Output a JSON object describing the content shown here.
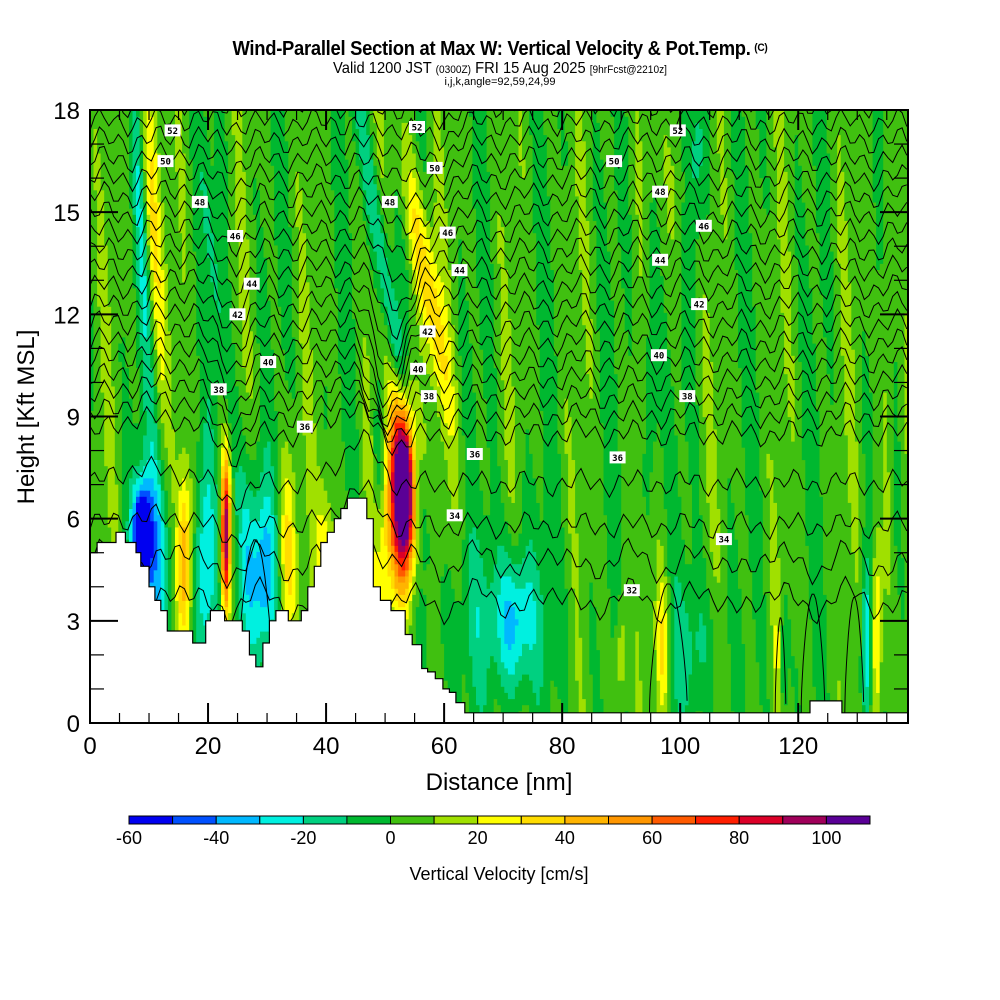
{
  "header": {
    "title": "Wind-Parallel Section at Max W: Vertical Velocity & Pot.Temp.",
    "title_mark": "(C)",
    "valid_prefix": "Valid 1200 JST",
    "valid_utc": "(0300Z)",
    "valid_date": "FRI 15 Aug 2025",
    "forecast": "[9hrFcst@2210z]",
    "indices": "i,j,k,angle=92,59,24,99"
  },
  "chart_data": {
    "type": "heatmap",
    "title": "Wind-Parallel Section at Max W: Vertical Velocity & Pot.Temp.",
    "xlabel": "Distance [nm]",
    "ylabel": "Height [Kft MSL]",
    "xlim": [
      0,
      138.6
    ],
    "ylim": [
      0,
      18
    ],
    "x_ticks": [
      "0",
      "20",
      "40",
      "60",
      "80",
      "100",
      "120"
    ],
    "x_tick_values": [
      0,
      20,
      40,
      60,
      80,
      100,
      120
    ],
    "y_ticks": [
      "0",
      "3",
      "6",
      "9",
      "12",
      "15",
      "18"
    ],
    "y_tick_values": [
      0,
      3,
      6,
      9,
      12,
      15,
      18
    ],
    "colorbar": {
      "title": "Vertical Velocity [cm/s]",
      "bounds": [
        -60,
        -50,
        -40,
        -30,
        -20,
        -10,
        0,
        10,
        20,
        30,
        40,
        50,
        60,
        70,
        80,
        90,
        100,
        110
      ],
      "tick_labels": [
        "-60",
        "-40",
        "-20",
        "0",
        "20",
        "40",
        "60",
        "80",
        "100"
      ],
      "tick_values": [
        -60,
        -40,
        -20,
        0,
        20,
        40,
        60,
        80,
        100
      ],
      "colors": [
        "#0000f0",
        "#0050ff",
        "#00b8ff",
        "#00f0e0",
        "#00d080",
        "#00b830",
        "#40c010",
        "#a0e000",
        "#ffff00",
        "#ffdc00",
        "#ffb400",
        "#ff9600",
        "#ff5a00",
        "#ff1e00",
        "#dc0028",
        "#a0005a",
        "#5a0096"
      ]
    },
    "contour_field": "Potential Temperature",
    "contour_labels": [
      {
        "value": "52",
        "x": 14,
        "y": 17.4
      },
      {
        "value": "50",
        "x": 12.8,
        "y": 16.5
      },
      {
        "value": "48",
        "x": 18.6,
        "y": 15.3
      },
      {
        "value": "46",
        "x": 24.6,
        "y": 14.3
      },
      {
        "value": "44",
        "x": 27.4,
        "y": 12.9
      },
      {
        "value": "42",
        "x": 25,
        "y": 12
      },
      {
        "value": "40",
        "x": 30.2,
        "y": 10.6
      },
      {
        "value": "38",
        "x": 21.8,
        "y": 9.8
      },
      {
        "value": "36",
        "x": 36.4,
        "y": 8.7
      },
      {
        "value": "52",
        "x": 55.4,
        "y": 17.5
      },
      {
        "value": "50",
        "x": 58.4,
        "y": 16.3
      },
      {
        "value": "48",
        "x": 50.8,
        "y": 15.3
      },
      {
        "value": "46",
        "x": 60.6,
        "y": 14.4
      },
      {
        "value": "44",
        "x": 62.6,
        "y": 13.3
      },
      {
        "value": "42",
        "x": 57.2,
        "y": 11.5
      },
      {
        "value": "40",
        "x": 55.6,
        "y": 10.4
      },
      {
        "value": "38",
        "x": 57.4,
        "y": 9.6
      },
      {
        "value": "36",
        "x": 65.2,
        "y": 7.9
      },
      {
        "value": "34",
        "x": 61.8,
        "y": 6.1
      },
      {
        "value": "52",
        "x": 99.6,
        "y": 17.4
      },
      {
        "value": "50",
        "x": 88.8,
        "y": 16.5
      },
      {
        "value": "48",
        "x": 96.6,
        "y": 15.6
      },
      {
        "value": "46",
        "x": 104,
        "y": 14.6
      },
      {
        "value": "44",
        "x": 96.6,
        "y": 13.6
      },
      {
        "value": "42",
        "x": 103.2,
        "y": 12.3
      },
      {
        "value": "40",
        "x": 96.4,
        "y": 10.8
      },
      {
        "value": "38",
        "x": 101.2,
        "y": 9.6
      },
      {
        "value": "36",
        "x": 89.4,
        "y": 7.8
      },
      {
        "value": "34",
        "x": 107.4,
        "y": 5.4
      },
      {
        "value": "32",
        "x": 91.8,
        "y": 3.9
      }
    ],
    "grid": false
  }
}
